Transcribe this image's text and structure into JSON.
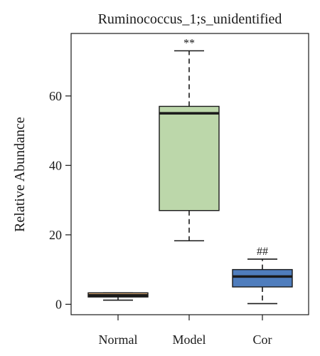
{
  "chart_data": {
    "type": "box",
    "title": "Ruminococcus_1;s_unidentified",
    "ylabel": "Relative Abundance",
    "xlabel": "",
    "ylim": [
      -3,
      78
    ],
    "yticks": [
      0,
      20,
      40,
      60
    ],
    "categories": [
      "Normal",
      "Model",
      "Cor"
    ],
    "boxes": [
      {
        "category": "Normal",
        "min": 1.2,
        "q1": 2.1,
        "median": 2.6,
        "q3": 3.3,
        "max": 3.3,
        "color": "#e3b27a",
        "annotation": ""
      },
      {
        "category": "Model",
        "min": 18.3,
        "q1": 27,
        "median": 55,
        "q3": 57,
        "max": 73,
        "color": "#bcd7aa",
        "annotation": "**"
      },
      {
        "category": "Cor",
        "min": 0.2,
        "q1": 5,
        "median": 8,
        "q3": 10,
        "max": 13,
        "color": "#4f7dbd",
        "annotation": "##"
      }
    ]
  }
}
